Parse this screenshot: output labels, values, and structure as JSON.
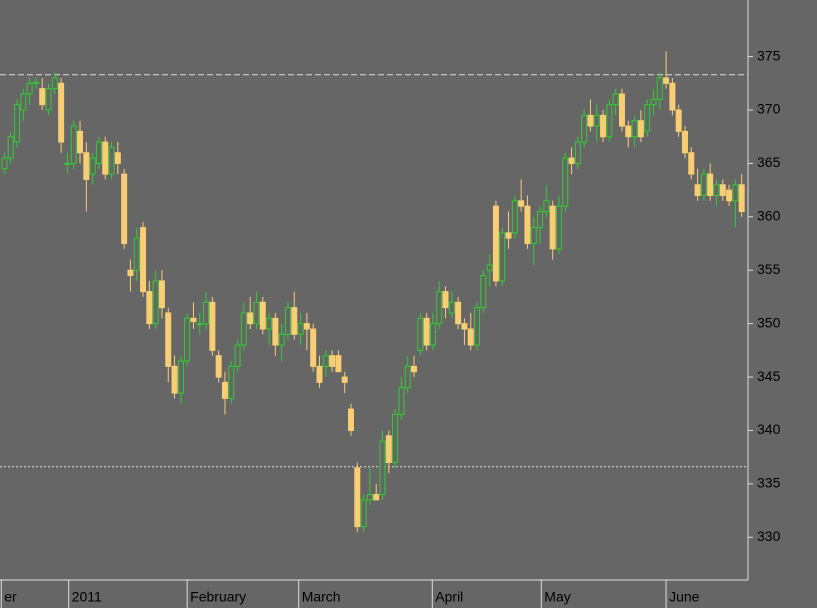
{
  "chart_data": {
    "type": "candlestick",
    "ylim": [
      326,
      380.3
    ],
    "yticks": [
      330,
      335,
      340,
      345,
      350,
      355,
      360,
      365,
      370,
      375
    ],
    "xlim": [
      -0.7,
      118
    ],
    "xticks": [
      {
        "value": -0.5,
        "label": "er"
      },
      {
        "value": 10.2,
        "label": "2011"
      },
      {
        "value": 29,
        "label": "February"
      },
      {
        "value": 46.7,
        "label": "March"
      },
      {
        "value": 67.9,
        "label": "April"
      },
      {
        "value": 85.2,
        "label": "May"
      },
      {
        "value": 105,
        "label": "June"
      }
    ],
    "hlines": [
      {
        "value": 373.3,
        "style": "dashed"
      },
      {
        "value": 336.6,
        "style": "dotted"
      }
    ],
    "up_color": "#33cc33",
    "down_color": "#f8cd74",
    "ohlc": [
      [
        364.5,
        366,
        364,
        365.5
      ],
      [
        365.5,
        368,
        365,
        367.5
      ],
      [
        367,
        371,
        366.5,
        370.5
      ],
      [
        370,
        372,
        369,
        371.5
      ],
      [
        371.5,
        373,
        370.5,
        372.5
      ],
      [
        372.5,
        373,
        372,
        372.6
      ],
      [
        372,
        373,
        370,
        370.5
      ],
      [
        370,
        372.5,
        369.5,
        372
      ],
      [
        372,
        373.5,
        371.5,
        373
      ],
      [
        372.5,
        373,
        366,
        367
      ],
      [
        365,
        366,
        364,
        365
      ],
      [
        365,
        369,
        364.5,
        368.5
      ],
      [
        368,
        369,
        365,
        366
      ],
      [
        366,
        367,
        360.5,
        363.5
      ],
      [
        364,
        366,
        363,
        365.5
      ],
      [
        365,
        367.5,
        364.5,
        367
      ],
      [
        367,
        367.5,
        363.5,
        364
      ],
      [
        364,
        367,
        363.5,
        366.5
      ],
      [
        366,
        367,
        364,
        365
      ],
      [
        364,
        364.5,
        357,
        357.5
      ],
      [
        355,
        356,
        353,
        354.5
      ],
      [
        355,
        359,
        354,
        358
      ],
      [
        359,
        359.5,
        352.5,
        353
      ],
      [
        353,
        354,
        349.5,
        350
      ],
      [
        350,
        355,
        349.5,
        354
      ],
      [
        354,
        355,
        350.5,
        351.5
      ],
      [
        351,
        351.5,
        344.5,
        346
      ],
      [
        346,
        347,
        343,
        343.5
      ],
      [
        343.5,
        347,
        342.5,
        346.5
      ],
      [
        346.5,
        351,
        346,
        350.5
      ],
      [
        350.5,
        352,
        349.5,
        350.2
      ],
      [
        350,
        351,
        349,
        350
      ],
      [
        350,
        353,
        349.5,
        352
      ],
      [
        352,
        352.5,
        347,
        347.5
      ],
      [
        347,
        347.5,
        344.5,
        345
      ],
      [
        344.5,
        345.5,
        341.5,
        343
      ],
      [
        343,
        346.5,
        342.5,
        346
      ],
      [
        346,
        348.5,
        345.5,
        348
      ],
      [
        348,
        352,
        347.5,
        351
      ],
      [
        351,
        352.5,
        349.5,
        350
      ],
      [
        350,
        353,
        349.5,
        352
      ],
      [
        352,
        352.5,
        349,
        349.5
      ],
      [
        349.5,
        351,
        348,
        350.5
      ],
      [
        350.5,
        351,
        347,
        348
      ],
      [
        348,
        350,
        346.5,
        349
      ],
      [
        349,
        352,
        348.5,
        351.5
      ],
      [
        351.5,
        353,
        348.5,
        349
      ],
      [
        349,
        351,
        348,
        350
      ],
      [
        350,
        351,
        347.5,
        349.5
      ],
      [
        349.5,
        350,
        345.5,
        346
      ],
      [
        346,
        347,
        344,
        344.5
      ],
      [
        346,
        347.5,
        345,
        347
      ],
      [
        347,
        347.5,
        345.5,
        346
      ],
      [
        347,
        347.5,
        345.5,
        345.5
      ],
      [
        345,
        345.5,
        343.5,
        344.5
      ],
      [
        342,
        342.5,
        339.5,
        340
      ],
      [
        336.5,
        337,
        330.5,
        331
      ],
      [
        331,
        334,
        330.5,
        333.5
      ],
      [
        333.5,
        336.5,
        333,
        334
      ],
      [
        334,
        335,
        333.5,
        333.5
      ],
      [
        334,
        340,
        333.5,
        339
      ],
      [
        339.5,
        340,
        336,
        337
      ],
      [
        337,
        342,
        336.5,
        341.5
      ],
      [
        341.5,
        345,
        341,
        344
      ],
      [
        344,
        347,
        343.5,
        346
      ],
      [
        346,
        347,
        345,
        345.5
      ],
      [
        347.5,
        351,
        347,
        350.5
      ],
      [
        350.5,
        351,
        347.5,
        348
      ],
      [
        348,
        351,
        347.5,
        350
      ],
      [
        350,
        354,
        349.5,
        353
      ],
      [
        353,
        353.5,
        350.5,
        351.5
      ],
      [
        351,
        353,
        350.5,
        352
      ],
      [
        352,
        352.5,
        349.5,
        350
      ],
      [
        350,
        350.5,
        348,
        349.5
      ],
      [
        349.5,
        351,
        347.5,
        348
      ],
      [
        348,
        352,
        347.5,
        351.5
      ],
      [
        351.5,
        355,
        351,
        354.5
      ],
      [
        355,
        356.5,
        353.5,
        355.5
      ],
      [
        361,
        361.5,
        353.5,
        354
      ],
      [
        354,
        359,
        353.5,
        358.5
      ],
      [
        358.5,
        360.5,
        357,
        358
      ],
      [
        358.5,
        362,
        358,
        361.5
      ],
      [
        361.5,
        363.5,
        360.5,
        361
      ],
      [
        361,
        362,
        357,
        357.5
      ],
      [
        357.5,
        360,
        355.5,
        359
      ],
      [
        359,
        361,
        357.5,
        360.5
      ],
      [
        360.5,
        363,
        360,
        361.5
      ],
      [
        361,
        361.5,
        356,
        357
      ],
      [
        357,
        362,
        356.5,
        361
      ],
      [
        361,
        366,
        360.5,
        365.5
      ],
      [
        365.5,
        366.5,
        364,
        365
      ],
      [
        365,
        367.5,
        364.5,
        367
      ],
      [
        367,
        370,
        366.5,
        369.5
      ],
      [
        369.5,
        371,
        368,
        368.5
      ],
      [
        368.5,
        370.5,
        367,
        369.5
      ],
      [
        369.5,
        370,
        367,
        367.5
      ],
      [
        367.5,
        371,
        367,
        370.5
      ],
      [
        370.5,
        372,
        369.5,
        371.5
      ],
      [
        371.5,
        372,
        368,
        368.5
      ],
      [
        368.5,
        369,
        366.5,
        367.5
      ],
      [
        367.5,
        369.5,
        366.5,
        369
      ],
      [
        369,
        370,
        367,
        367.5
      ],
      [
        368,
        371,
        367.5,
        370.5
      ],
      [
        370.5,
        372,
        369.5,
        371
      ],
      [
        371,
        373.5,
        370,
        373
      ],
      [
        373,
        375.5,
        372,
        372.5
      ],
      [
        372.5,
        373,
        369.5,
        370
      ],
      [
        370,
        370.5,
        367.5,
        368
      ],
      [
        368,
        368.5,
        365.5,
        366
      ],
      [
        366,
        366.5,
        363.5,
        364
      ],
      [
        363,
        364.5,
        361.5,
        362
      ],
      [
        362,
        364.5,
        361.5,
        364
      ],
      [
        364,
        365,
        361.5,
        362
      ],
      [
        362,
        363.5,
        361,
        363
      ],
      [
        363,
        363.5,
        361.5,
        362
      ],
      [
        362.5,
        363,
        361,
        361.5
      ],
      [
        361.5,
        363.5,
        359,
        363
      ],
      [
        363,
        364,
        360,
        360.5
      ]
    ]
  }
}
